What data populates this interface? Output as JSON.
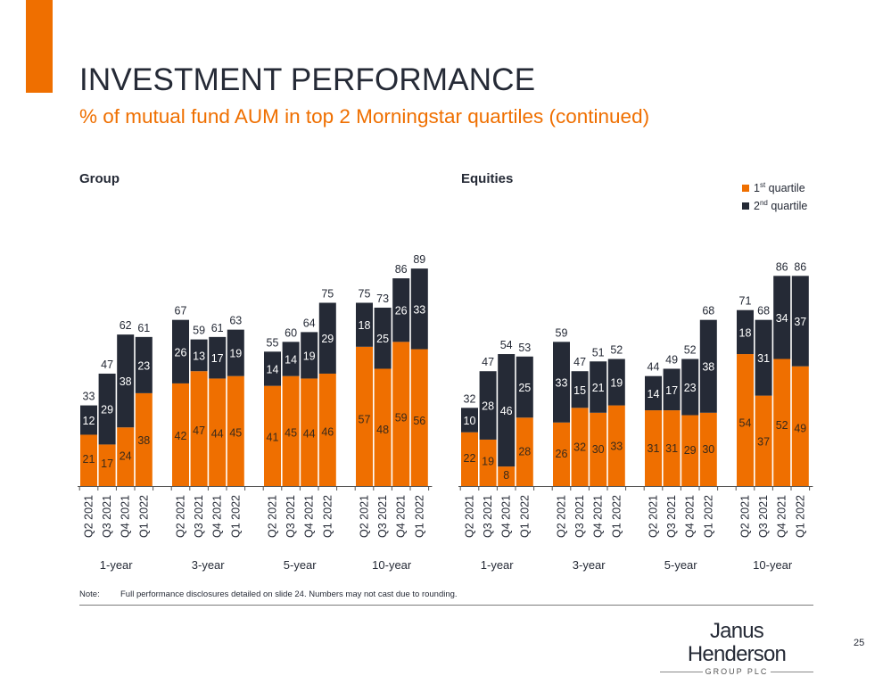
{
  "slide": {
    "title": "INVESTMENT PERFORMANCE",
    "subtitle": "% of mutual fund AUM in top 2 Morningstar quartiles (continued)",
    "note_label": "Note:",
    "note_text": "Full performance disclosures detailed on slide 24. Numbers may not cast due to rounding.",
    "logo_name": "Janus Henderson",
    "logo_sub": "GROUP PLC",
    "page_number": "25",
    "colors": {
      "accent": "#ef6f00",
      "dark": "#252a36"
    }
  },
  "legend": {
    "items": [
      {
        "base": "1",
        "sup": "st",
        "label": " quartile",
        "color": "#ef6f00"
      },
      {
        "base": "2",
        "sup": "nd",
        "label": " quartile",
        "color": "#252a36"
      }
    ]
  },
  "chart_data": [
    {
      "type": "bar",
      "stacked": true,
      "title": "Group",
      "periods": [
        "1-year",
        "3-year",
        "5-year",
        "10-year"
      ],
      "categories": [
        "Q2 2021",
        "Q3 2021",
        "Q4 2021",
        "Q1 2022"
      ],
      "series": [
        {
          "name": "1st quartile",
          "color": "#ef6f00",
          "values": [
            [
              21,
              17,
              24,
              38
            ],
            [
              42,
              47,
              44,
              45
            ],
            [
              41,
              45,
              44,
              46
            ],
            [
              57,
              48,
              59,
              56
            ]
          ]
        },
        {
          "name": "2nd quartile",
          "color": "#252a36",
          "values": [
            [
              12,
              29,
              38,
              23
            ],
            [
              26,
              13,
              17,
              19
            ],
            [
              14,
              14,
              19,
              29
            ],
            [
              18,
              25,
              26,
              33
            ]
          ]
        }
      ],
      "totals": [
        [
          33,
          47,
          62,
          61
        ],
        [
          67,
          59,
          61,
          63
        ],
        [
          55,
          60,
          64,
          75
        ],
        [
          75,
          73,
          86,
          89
        ]
      ],
      "ylim": [
        0,
        100
      ],
      "grid": false
    },
    {
      "type": "bar",
      "stacked": true,
      "title": "Equities",
      "periods": [
        "1-year",
        "3-year",
        "5-year",
        "10-year"
      ],
      "categories": [
        "Q2 2021",
        "Q3 2021",
        "Q4 2021",
        "Q1 2022"
      ],
      "series": [
        {
          "name": "1st quartile",
          "color": "#ef6f00",
          "values": [
            [
              22,
              19,
              8,
              28
            ],
            [
              26,
              32,
              30,
              33
            ],
            [
              31,
              31,
              29,
              30
            ],
            [
              54,
              37,
              52,
              49
            ]
          ]
        },
        {
          "name": "2nd quartile",
          "color": "#252a36",
          "values": [
            [
              10,
              28,
              46,
              25
            ],
            [
              33,
              15,
              21,
              19
            ],
            [
              14,
              17,
              23,
              38
            ],
            [
              18,
              31,
              34,
              37
            ]
          ]
        }
      ],
      "totals": [
        [
          32,
          47,
          54,
          53
        ],
        [
          59,
          47,
          51,
          52
        ],
        [
          44,
          49,
          52,
          68
        ],
        [
          71,
          68,
          86,
          86
        ]
      ],
      "ylim": [
        0,
        100
      ],
      "grid": false,
      "legend": "top-right"
    }
  ]
}
